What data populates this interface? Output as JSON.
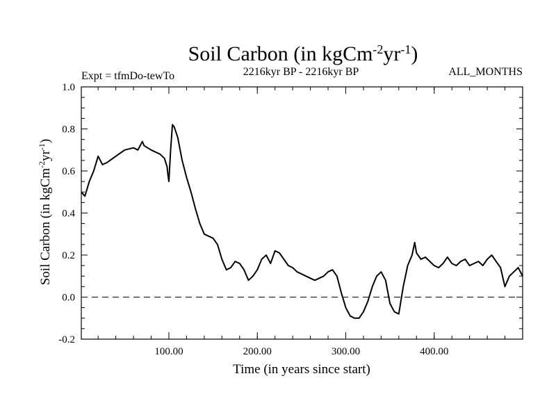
{
  "header": {
    "expt": "Expt = tfmDo-tewTo",
    "period": "2216kyr BP - 2216kyr BP",
    "months": "ALL_MONTHS"
  },
  "chart_data": {
    "type": "line",
    "title": {
      "base": "Soil Carbon (in kgCm",
      "sup1": "-2",
      "mid": "yr",
      "sup2": "-1",
      "end": ")"
    },
    "ylabel": {
      "base": "Soil Carbon (in kgCm",
      "sup1": "-2",
      "mid": "yr",
      "sup2": "-1",
      "end": ")"
    },
    "xlabel": "Time (in years since start)",
    "xlim": [
      1,
      500
    ],
    "ylim": [
      -0.2,
      1.0
    ],
    "x_ticks": [
      100,
      200,
      300,
      400
    ],
    "x_tick_labels": [
      "100.00",
      "200.00",
      "300.00",
      "400.00"
    ],
    "y_ticks": [
      -0.2,
      0.0,
      0.2,
      0.4,
      0.6,
      0.8,
      1.0
    ],
    "y_tick_labels": [
      "-0.2",
      "0.0",
      "0.2",
      "0.4",
      "0.6",
      "0.8",
      "1.0"
    ],
    "reference_line": {
      "y": 0.0,
      "style": "dashed"
    },
    "series": [
      {
        "name": "Soil Carbon",
        "x": [
          1,
          5,
          10,
          15,
          20,
          25,
          30,
          40,
          50,
          60,
          65,
          70,
          72,
          80,
          90,
          95,
          98,
          99,
          100,
          102,
          104,
          106,
          110,
          115,
          120,
          125,
          130,
          135,
          140,
          145,
          150,
          155,
          160,
          165,
          170,
          175,
          180,
          185,
          190,
          195,
          200,
          205,
          210,
          215,
          220,
          225,
          230,
          235,
          240,
          245,
          250,
          255,
          260,
          265,
          270,
          275,
          280,
          285,
          290,
          295,
          300,
          305,
          310,
          315,
          320,
          325,
          330,
          335,
          340,
          345,
          350,
          355,
          360,
          365,
          370,
          375,
          378,
          380,
          385,
          390,
          395,
          400,
          405,
          410,
          415,
          420,
          425,
          430,
          435,
          440,
          445,
          450,
          455,
          460,
          465,
          470,
          475,
          480,
          485,
          490,
          495,
          500
        ],
        "y": [
          0.5,
          0.48,
          0.55,
          0.6,
          0.67,
          0.63,
          0.64,
          0.67,
          0.7,
          0.71,
          0.7,
          0.74,
          0.72,
          0.7,
          0.68,
          0.66,
          0.62,
          0.58,
          0.55,
          0.7,
          0.82,
          0.81,
          0.76,
          0.65,
          0.57,
          0.5,
          0.42,
          0.35,
          0.3,
          0.29,
          0.28,
          0.25,
          0.18,
          0.13,
          0.14,
          0.17,
          0.16,
          0.13,
          0.08,
          0.1,
          0.13,
          0.18,
          0.2,
          0.16,
          0.22,
          0.21,
          0.18,
          0.15,
          0.14,
          0.12,
          0.11,
          0.1,
          0.09,
          0.08,
          0.09,
          0.1,
          0.12,
          0.13,
          0.1,
          0.02,
          -0.05,
          -0.09,
          -0.1,
          -0.1,
          -0.07,
          -0.02,
          0.05,
          0.1,
          0.12,
          0.08,
          -0.03,
          -0.07,
          -0.08,
          0.05,
          0.15,
          0.2,
          0.26,
          0.21,
          0.18,
          0.19,
          0.17,
          0.15,
          0.14,
          0.16,
          0.19,
          0.16,
          0.15,
          0.17,
          0.18,
          0.15,
          0.16,
          0.17,
          0.15,
          0.18,
          0.2,
          0.17,
          0.14,
          0.05,
          0.1,
          0.12,
          0.14,
          0.1
        ]
      }
    ]
  }
}
